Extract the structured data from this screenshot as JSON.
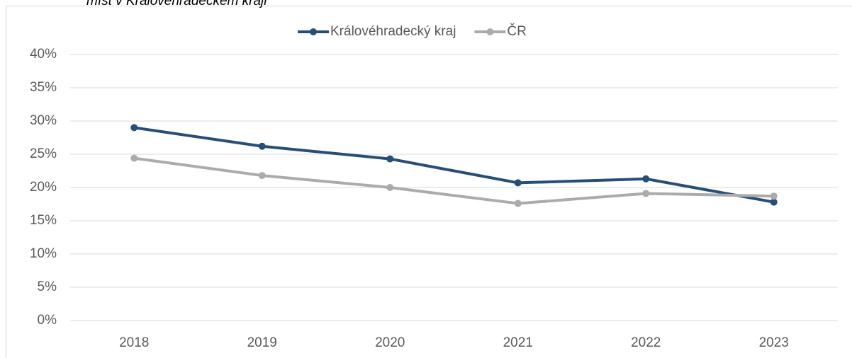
{
  "chart_data": {
    "type": "line",
    "title": "míst v Královéhradeckém kraji",
    "categories": [
      "2018",
      "2019",
      "2020",
      "2021",
      "2022",
      "2023"
    ],
    "series": [
      {
        "name": "Královéhradecký kraj",
        "color": "#264e78",
        "values": [
          29.0,
          26.2,
          24.3,
          20.7,
          21.3,
          17.8
        ]
      },
      {
        "name": "ČR",
        "color": "#ababab",
        "values": [
          24.4,
          21.8,
          20.0,
          17.6,
          19.1,
          18.7
        ]
      }
    ],
    "ylim": [
      0,
      40
    ],
    "yticks": [
      {
        "value": 0,
        "label": "0%"
      },
      {
        "value": 5,
        "label": "5%"
      },
      {
        "value": 10,
        "label": "10%"
      },
      {
        "value": 15,
        "label": "15%"
      },
      {
        "value": 20,
        "label": "20%"
      },
      {
        "value": 25,
        "label": "25%"
      },
      {
        "value": 30,
        "label": "30%"
      },
      {
        "value": 35,
        "label": "35%"
      },
      {
        "value": 40,
        "label": "40%"
      }
    ],
    "grid": true,
    "legend": "top"
  }
}
